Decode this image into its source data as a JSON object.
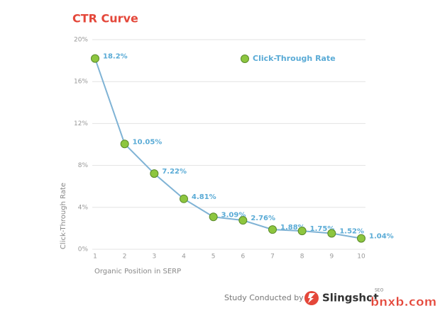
{
  "chart_data": {
    "type": "line",
    "title": "CTR Curve",
    "x_label": "Organic Position in SERP",
    "y_label": "Click-Through Rate",
    "categories": [
      "1",
      "2",
      "3",
      "4",
      "5",
      "6",
      "7",
      "8",
      "9",
      "10"
    ],
    "series": [
      {
        "name": "Click-Through Rate",
        "color": "#7fb3d5",
        "marker_color": "#8dc63f",
        "values": [
          18.2,
          10.05,
          7.22,
          4.81,
          3.09,
          2.76,
          1.88,
          1.75,
          1.52,
          1.04
        ],
        "value_labels": [
          "18.2%",
          "10.05%",
          "7.22%",
          "4.81%",
          "3.09%",
          "2.76%",
          "1.88%",
          "1.75%",
          "1.52%",
          "1.04%"
        ]
      }
    ],
    "ylim": [
      0,
      20
    ],
    "yticks": [
      {
        "value": 0,
        "label": "0%"
      },
      {
        "value": 4,
        "label": "4%"
      },
      {
        "value": 8,
        "label": "8%"
      },
      {
        "value": 12,
        "label": "12%"
      },
      {
        "value": 16,
        "label": "16%"
      },
      {
        "value": 20,
        "label": "20%"
      }
    ],
    "grid": true,
    "legend": "top-right"
  },
  "footer": {
    "text": "Study Conducted by",
    "brand": "Slingshot",
    "brand_suffix": "SEO"
  },
  "watermark": "bnxb.com"
}
